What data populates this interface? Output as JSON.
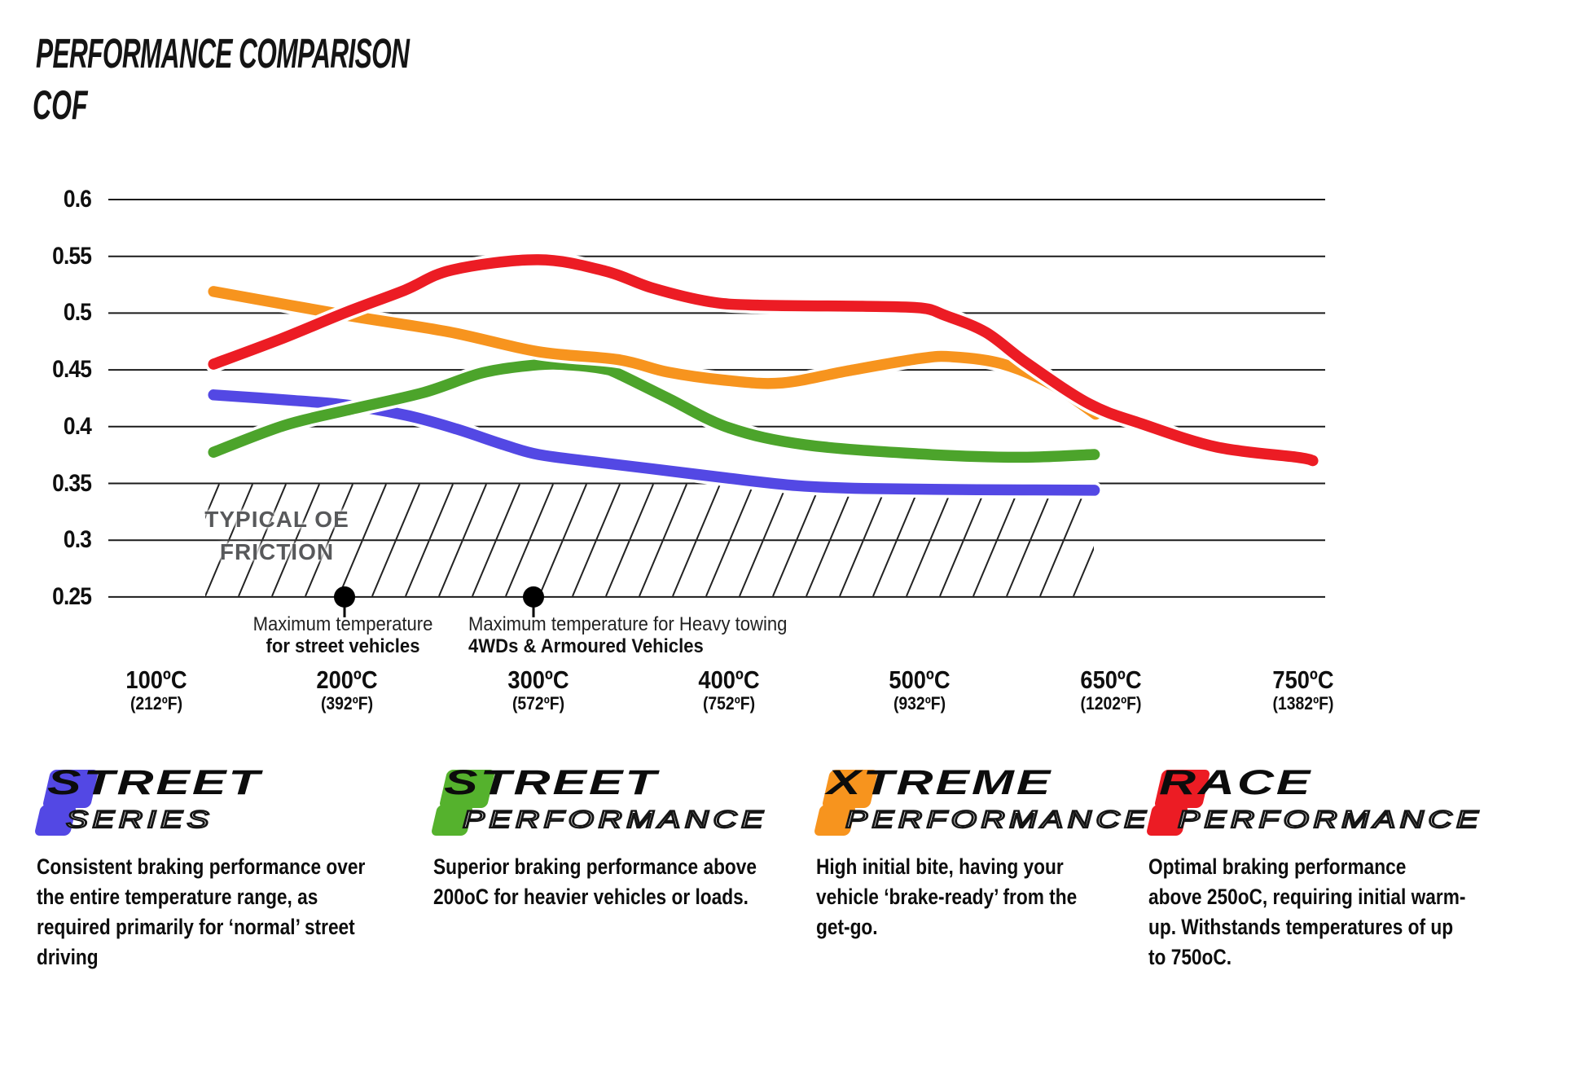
{
  "header": {
    "title": "PERFORMANCE COMPARISON",
    "ylabel": "COF"
  },
  "chart_data": {
    "type": "line",
    "title": "PERFORMANCE COMPARISON",
    "ylabel": "COF",
    "xlabel": "",
    "grid": "horizontal",
    "legend_position": "bottom",
    "ylim": [
      0.25,
      0.6
    ],
    "y_ticks": [
      "0.6",
      "0.55",
      "0.5",
      "0.45",
      "0.4",
      "0.35",
      "0.3",
      "0.25"
    ],
    "y_tick_values": [
      0.6,
      0.55,
      0.5,
      0.45,
      0.4,
      0.35,
      0.3,
      0.25
    ],
    "x_ticks": [
      {
        "temp": 100,
        "c": "100ºC",
        "f": "(212ºF)"
      },
      {
        "temp": 200,
        "c": "200ºC",
        "f": "(392ºF)"
      },
      {
        "temp": 300,
        "c": "300ºC",
        "f": "(572ºF)"
      },
      {
        "temp": 400,
        "c": "400ºC",
        "f": "(752ºF)"
      },
      {
        "temp": 500,
        "c": "500ºC",
        "f": "(932ºF)"
      },
      {
        "temp": 650,
        "c": "650ºC",
        "f": "(1202ºF)"
      },
      {
        "temp": 750,
        "c": "750ºC",
        "f": "(1382ºF)"
      }
    ],
    "series": [
      {
        "name": "Street Series",
        "color": "#5348e4",
        "points": [
          [
            130,
            0.428
          ],
          [
            172,
            0.423
          ],
          [
            200,
            0.419
          ],
          [
            231,
            0.41
          ],
          [
            257,
            0.398
          ],
          [
            282,
            0.384
          ],
          [
            300,
            0.3755
          ],
          [
            329,
            0.369
          ],
          [
            359,
            0.363
          ],
          [
            400,
            0.3545
          ],
          [
            436,
            0.348
          ],
          [
            471,
            0.3455
          ],
          [
            545,
            0.3445
          ],
          [
            637,
            0.344
          ]
        ]
      },
      {
        "name": "Street Performance",
        "color": "#4ca42b",
        "points": [
          [
            130,
            0.3775
          ],
          [
            167,
            0.401
          ],
          [
            200,
            0.4145
          ],
          [
            240,
            0.43
          ],
          [
            271,
            0.4475
          ],
          [
            300,
            0.4545
          ],
          [
            317,
            0.4543
          ],
          [
            334,
            0.451
          ],
          [
            342,
            0.4465
          ],
          [
            368,
            0.425
          ],
          [
            400,
            0.399
          ],
          [
            440,
            0.384
          ],
          [
            500,
            0.376
          ],
          [
            577,
            0.373
          ],
          [
            637,
            0.3755
          ]
        ]
      },
      {
        "name": "Xtreme Performance",
        "color": "#f7941e",
        "points": [
          [
            130,
            0.519
          ],
          [
            200,
            0.498
          ],
          [
            253,
            0.4835
          ],
          [
            300,
            0.466
          ],
          [
            342,
            0.459
          ],
          [
            368,
            0.448
          ],
          [
            400,
            0.4405
          ],
          [
            428,
            0.4385
          ],
          [
            462,
            0.449
          ],
          [
            500,
            0.46
          ],
          [
            526,
            0.4615
          ],
          [
            564,
            0.4555
          ],
          [
            603,
            0.4375
          ],
          [
            638,
            0.411
          ]
        ]
      },
      {
        "name": "Race Performance",
        "color": "#ec1c24",
        "points": [
          [
            130,
            0.455
          ],
          [
            165,
            0.477
          ],
          [
            200,
            0.501
          ],
          [
            230,
            0.52
          ],
          [
            255,
            0.538
          ],
          [
            300,
            0.547
          ],
          [
            335,
            0.537
          ],
          [
            360,
            0.522
          ],
          [
            390,
            0.51
          ],
          [
            415,
            0.507
          ],
          [
            470,
            0.506
          ],
          [
            501,
            0.5045
          ],
          [
            520,
            0.498
          ],
          [
            552,
            0.483
          ],
          [
            584,
            0.456
          ],
          [
            633,
            0.42
          ],
          [
            666,
            0.4025
          ],
          [
            705,
            0.382
          ],
          [
            747,
            0.373
          ],
          [
            755,
            0.37
          ]
        ]
      }
    ],
    "oe_band": {
      "from": 0.25,
      "to": 0.35,
      "label_line1": "TYPICAL OE",
      "label_line2": "FRICTION"
    },
    "annotations": [
      {
        "temp": 200,
        "line1": "Maximum temperature",
        "line2": "for street vehicles",
        "align": "center"
      },
      {
        "temp": 300,
        "line1": "Maximum temperature for Heavy towing",
        "line2": "4WDs & Armoured Vehicles",
        "align": "left"
      }
    ]
  },
  "legend": [
    {
      "word1": "STREET",
      "word2": "SERIES",
      "color": "#5348e4",
      "desc": "Consistent braking performance over\nthe entire temperature range, as\nrequired primarily for ‘normal’ street\ndriving"
    },
    {
      "word1": "STREET",
      "word2": "PERFORMANCE",
      "color": "#55b22d",
      "desc": "Superior braking performance above\n200oC for heavier vehicles or loads."
    },
    {
      "word1": "XTREME",
      "word2": "PERFORMANCE",
      "color": "#f7941e",
      "desc": "High initial bite, having your\nvehicle ‘brake-ready’ from the\nget-go."
    },
    {
      "word1": "RACE",
      "word2": "PERFORMANCE",
      "color": "#ec1c24",
      "desc": "Optimal braking performance\nabove 250oC, requiring initial warm-\nup. Withstands temperatures of up\nto 750oC."
    }
  ]
}
